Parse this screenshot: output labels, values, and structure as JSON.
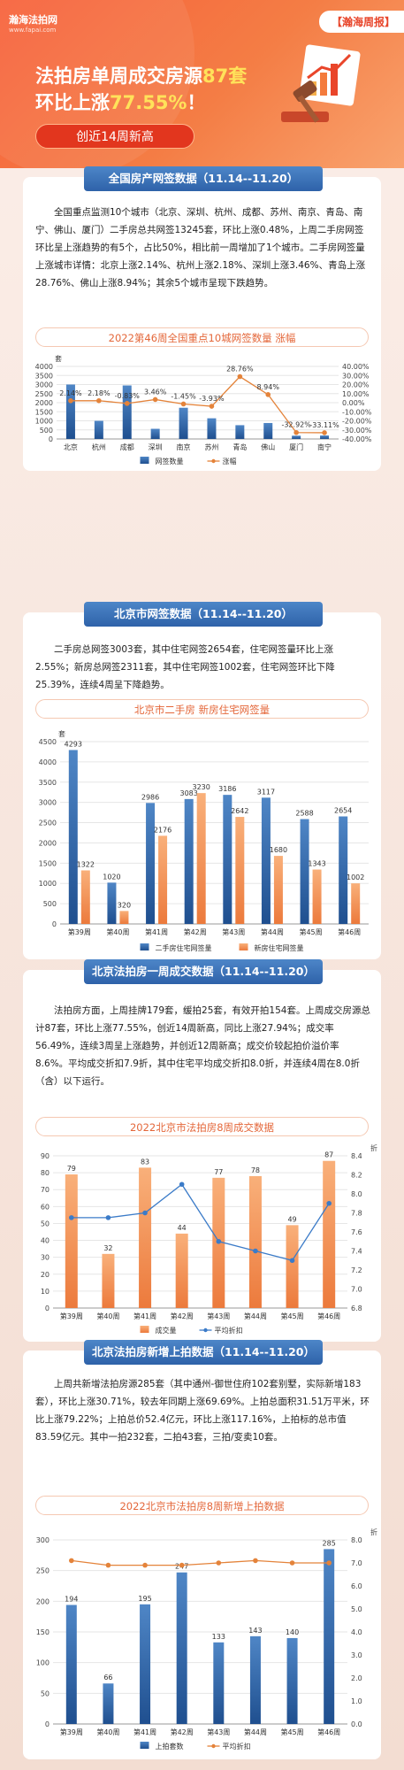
{
  "header": {
    "logo_name": "瀚海法拍网",
    "logo_sub": "www.fapai.com",
    "badge": "【瀚海周报】",
    "title_line1_a": "法拍房单周成交房源",
    "title_line1_b": "87套",
    "title_line2_a": "环比上涨",
    "title_line2_b": "77.55%",
    "title_line2_c": "！",
    "pill": "创近14周新高"
  },
  "sections": [
    {
      "title": "全国房产网签数据（11.14--11.20）",
      "paragraph": "全国重点监测10个城市（北京、深圳、杭州、成都、苏州、南京、青岛、南宁、佛山、厦门）二手房总共网签13245套，环比上涨0.48%，上周二手房网签环比呈上涨趋势的有5个，占比50%，相比前一周增加了1个城市。二手房网签量上涨城市详情：北京上涨2.14%、杭州上涨2.18%、深圳上涨3.46%、青岛上涨28.76%、佛山上涨8.94%；其余5个城市呈现下跌趋势。",
      "chart_title": "2022第46周全国重点10城网签数量 涨幅"
    },
    {
      "title": "北京市网签数据（11.14--11.20）",
      "paragraph": "二手房总网签3003套，其中住宅网签2654套，住宅网签量环比上涨2.55%；新房总网签2311套，其中住宅网签1002套，住宅网签环比下降25.39%，连续4周呈下降趋势。",
      "chart_title": "北京市二手房 新房住宅网签量"
    },
    {
      "title": "北京法拍房一周成交数据（11.14--11.20）",
      "paragraph": "法拍房方面，上周挂牌179套，缓拍25套，有效开拍154套。上周成交房源总计87套，环比上涨77.55%，创近14周新高，同比上涨27.94%；成交率56.49%，连续3周呈上涨趋势，并创近12周新高；成交价较起拍价溢价率8.6%。平均成交折扣7.9折，其中住宅平均成交折扣8.0折，并连续4周在8.0折（含）以下运行。",
      "chart_title": "2022北京市法拍房8周成交数据"
    },
    {
      "title": "北京法拍房新增上拍数据（11.14--11.20）",
      "paragraph": "上周共新增法拍房源285套（其中通州-御世住府102套别墅，实际新增183套），环比上涨30.71%，较去年同期上涨69.69%。上拍总面积31.51万平米，环比上涨79.22%；上拍总价52.4亿元，环比上涨117.16%，上拍标的总市值83.59亿元。其中一拍232套，二拍43套，三拍/变卖10套。",
      "chart_title": "2022北京市法拍房8周新增上拍数据"
    }
  ],
  "chart_data": [
    {
      "type": "bar",
      "categories": [
        "北京",
        "杭州",
        "成都",
        "深圳",
        "南京",
        "苏州",
        "青岛",
        "佛山",
        "厦门",
        "南宁"
      ],
      "series": [
        {
          "name": "网签数量",
          "type": "bar",
          "values": [
            3000,
            1000,
            2950,
            560,
            1720,
            1140,
            760,
            880,
            180,
            190
          ]
        },
        {
          "name": "涨幅",
          "type": "line",
          "values": [
            2.14,
            2.18,
            -0.83,
            3.46,
            -1.45,
            -3.93,
            28.76,
            8.94,
            -32.92,
            -33.11
          ]
        }
      ],
      "point_labels": [
        "2.14%",
        "2.18%",
        "-0.83%",
        "3.46%",
        "-1.45%",
        "-3.93%",
        "28.76%",
        "8.94%",
        "-32.92%",
        "-33.11%"
      ],
      "ylabel_left": "套",
      "ylim": [
        0,
        4000
      ],
      "yticks": [
        "0",
        "500",
        "1000",
        "1500",
        "2000",
        "2500",
        "3000",
        "3500",
        "4000"
      ],
      "ylim_right": [
        -40,
        40
      ],
      "yticks_right": [
        "-40.00%",
        "-30.00%",
        "-20.00%",
        "-10.00%",
        "0.00%",
        "10.00%",
        "20.00%",
        "30.00%",
        "40.00%"
      ],
      "legend": "bottom"
    },
    {
      "type": "bar",
      "categories": [
        "第39周",
        "第40周",
        "第41周",
        "第42周",
        "第43周",
        "第44周",
        "第45周",
        "第46周"
      ],
      "series": [
        {
          "name": "二手房住宅网签量",
          "values": [
            4293,
            1020,
            2986,
            3083,
            3186,
            3117,
            2588,
            2654
          ]
        },
        {
          "name": "新房住宅网签量",
          "values": [
            1322,
            320,
            2176,
            3230,
            2642,
            1680,
            1343,
            1002
          ]
        }
      ],
      "ylabel": "套",
      "ylim": [
        0,
        4500
      ],
      "yticks": [
        "0",
        "500",
        "1000",
        "1500",
        "2000",
        "2500",
        "3000",
        "3500",
        "4000",
        "4500"
      ],
      "legend": "bottom"
    },
    {
      "type": "bar",
      "categories": [
        "第39周",
        "第40周",
        "第41周",
        "第42周",
        "第43周",
        "第44周",
        "第45周",
        "第46周"
      ],
      "series": [
        {
          "name": "成交量",
          "type": "bar",
          "values": [
            79,
            32,
            83,
            44,
            77,
            78,
            49,
            87
          ]
        },
        {
          "name": "平均折扣",
          "type": "line",
          "values": [
            7.75,
            7.75,
            7.8,
            8.1,
            7.5,
            7.4,
            7.3,
            7.9
          ]
        }
      ],
      "ylim": [
        0,
        90
      ],
      "yticks": [
        "0",
        "10",
        "20",
        "30",
        "40",
        "50",
        "60",
        "70",
        "80",
        "90"
      ],
      "ylabel_right": "折",
      "ylim_right": [
        6.8,
        8.4
      ],
      "yticks_right": [
        "6.8",
        "7.0",
        "7.2",
        "7.4",
        "7.6",
        "7.8",
        "8.0",
        "8.2",
        "8.4"
      ],
      "legend": "bottom"
    },
    {
      "type": "bar",
      "categories": [
        "第39周",
        "第40周",
        "第41周",
        "第42周",
        "第43周",
        "第44周",
        "第45周",
        "第46周"
      ],
      "series": [
        {
          "name": "上拍套数",
          "type": "bar",
          "values": [
            194,
            66,
            195,
            247,
            133,
            143,
            140,
            285
          ]
        },
        {
          "name": "平均折扣",
          "type": "line",
          "values": [
            7.1,
            6.9,
            6.9,
            6.9,
            7.0,
            7.1,
            7.0,
            7.0
          ]
        }
      ],
      "ylim": [
        0,
        300
      ],
      "yticks": [
        "0",
        "50",
        "100",
        "150",
        "200",
        "250",
        "300"
      ],
      "ylabel_right": "折",
      "ylim_right": [
        0,
        8
      ],
      "yticks_right": [
        "0.0",
        "1.0",
        "2.0",
        "3.0",
        "4.0",
        "5.0",
        "6.0",
        "7.0",
        "8.0"
      ],
      "legend": "bottom"
    }
  ]
}
